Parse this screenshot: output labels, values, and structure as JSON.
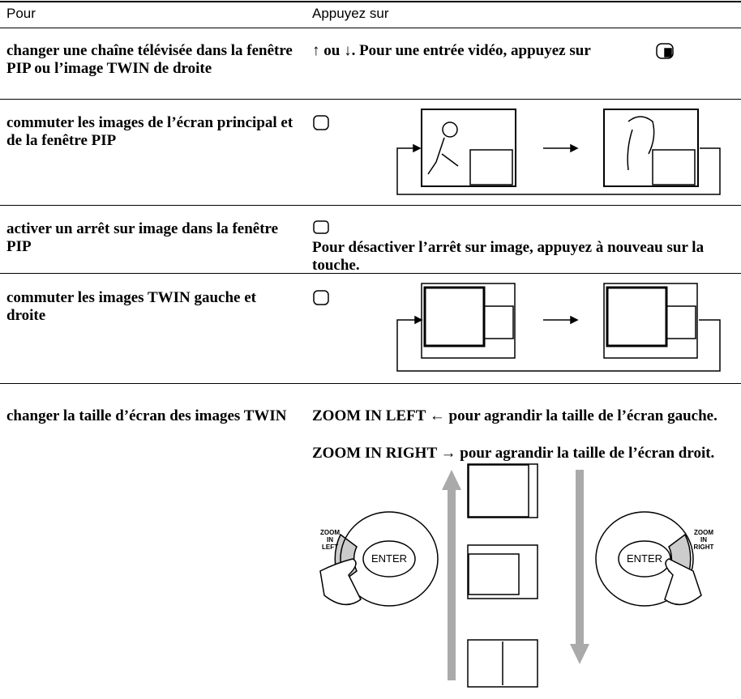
{
  "header": {
    "col1": "Pour",
    "col2": "Appuyez sur"
  },
  "rows": [
    {
      "pour": "changer une chaîne télévisée dans la fenêtre PIP ou l’image TWIN de droite",
      "appuyez": [
        "↑ ou ↓. Pour une entrée vidéo, appuyez sur"
      ]
    },
    {
      "pour": "commuter les images de l’écran principal et de la fenêtre PIP",
      "appuyez": []
    },
    {
      "pour": "activer un arrêt sur image dans la fenêtre PIP",
      "appuyez": [
        "Pour désactiver l’arrêt sur image, appuyez à nouveau sur la touche."
      ]
    },
    {
      "pour": "commuter les images TWIN gauche et droite",
      "appuyez": []
    },
    {
      "pour": "changer la taille d’écran des images TWIN",
      "appuyez": [
        "ZOOM IN LEFT ← pour agrandir la taille de l’écran gauche.",
        "ZOOM IN RIGHT → pour agrandir la taille de l’écran droit."
      ]
    }
  ],
  "remote": {
    "enter": "ENTER",
    "zoom_left": [
      "ZOOM",
      "IN",
      "LEFT"
    ],
    "zoom_right": [
      "ZOOM",
      "IN",
      "RIGHT"
    ]
  }
}
